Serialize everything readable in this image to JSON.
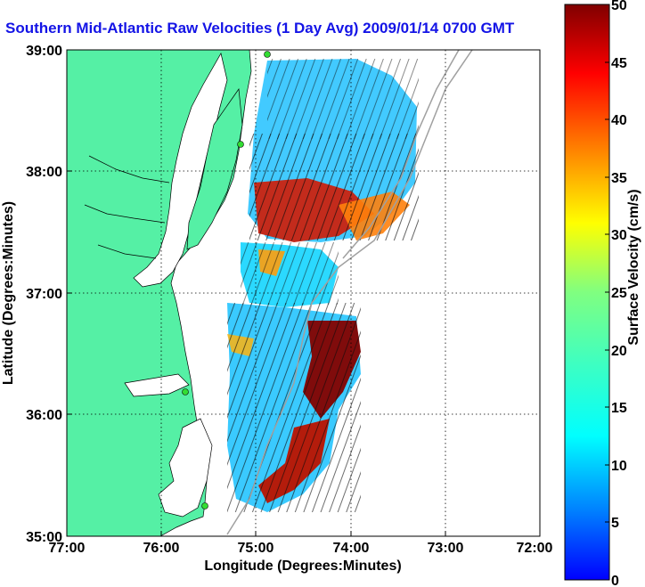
{
  "title": "Southern Mid-Atlantic Raw Velocities (1 Day Avg) 2009/01/14 0700 GMT",
  "xlabel": "Longitude (Degrees:Minutes)",
  "ylabel": "Latitude (Degrees:Minutes)",
  "colorbar_label": "Surface Velocity (cm/s)",
  "x_ticks": [
    "77:00",
    "76:00",
    "75:00",
    "74:00",
    "73:00",
    "72:00"
  ],
  "y_ticks": [
    "39:00",
    "38:00",
    "37:00",
    "36:00",
    "35:00"
  ],
  "colorbar_ticks": [
    "0",
    "5",
    "10",
    "15",
    "20",
    "25",
    "30",
    "35",
    "40",
    "45",
    "50"
  ],
  "colors": {
    "land": "#55f0a5",
    "title": "#1414e6",
    "bathymetry": "#a0a0a0",
    "station": "#33dd33"
  },
  "chart_data": {
    "type": "heatmap",
    "xlim": [
      -77,
      -72
    ],
    "ylim": [
      35,
      39
    ],
    "colorbar_range": [
      0,
      50
    ],
    "colormap": "jet",
    "grid": true
  }
}
